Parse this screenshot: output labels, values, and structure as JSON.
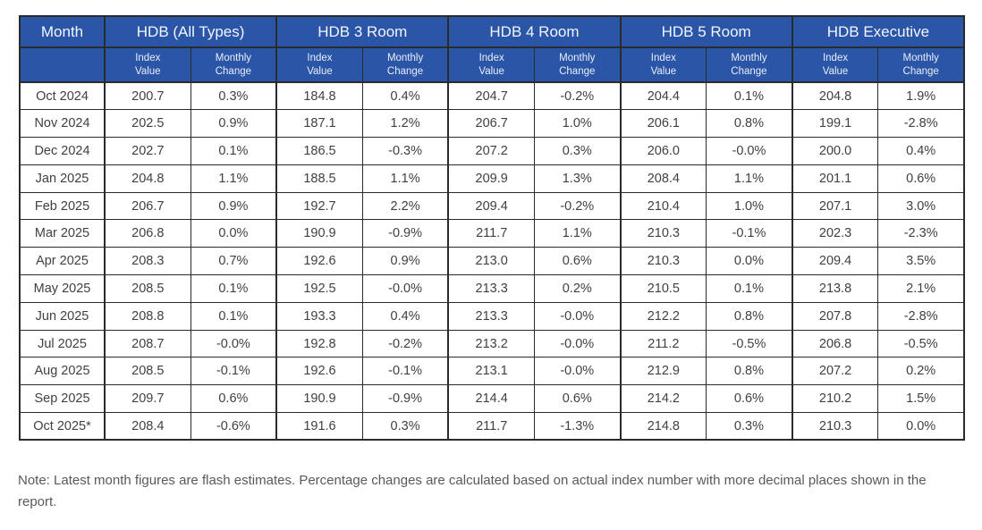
{
  "chart_data": {
    "type": "table",
    "column_groups": [
      "Month",
      "HDB (All Types)",
      "HDB 3 Room",
      "HDB 4 Room",
      "HDB 5 Room",
      "HDB Executive"
    ],
    "sub_columns": [
      "Index\nValue",
      "Monthly\nChange"
    ],
    "rows": [
      {
        "month": "Oct 2024",
        "values": [
          "200.7",
          "0.3%",
          "184.8",
          "0.4%",
          "204.7",
          "-0.2%",
          "204.4",
          "0.1%",
          "204.8",
          "1.9%"
        ]
      },
      {
        "month": "Nov 2024",
        "values": [
          "202.5",
          "0.9%",
          "187.1",
          "1.2%",
          "206.7",
          "1.0%",
          "206.1",
          "0.8%",
          "199.1",
          "-2.8%"
        ]
      },
      {
        "month": "Dec 2024",
        "values": [
          "202.7",
          "0.1%",
          "186.5",
          "-0.3%",
          "207.2",
          "0.3%",
          "206.0",
          "-0.0%",
          "200.0",
          "0.4%"
        ]
      },
      {
        "month": "Jan 2025",
        "values": [
          "204.8",
          "1.1%",
          "188.5",
          "1.1%",
          "209.9",
          "1.3%",
          "208.4",
          "1.1%",
          "201.1",
          "0.6%"
        ]
      },
      {
        "month": "Feb 2025",
        "values": [
          "206.7",
          "0.9%",
          "192.7",
          "2.2%",
          "209.4",
          "-0.2%",
          "210.4",
          "1.0%",
          "207.1",
          "3.0%"
        ]
      },
      {
        "month": "Mar 2025",
        "values": [
          "206.8",
          "0.0%",
          "190.9",
          "-0.9%",
          "211.7",
          "1.1%",
          "210.3",
          "-0.1%",
          "202.3",
          "-2.3%"
        ]
      },
      {
        "month": "Apr 2025",
        "values": [
          "208.3",
          "0.7%",
          "192.6",
          "0.9%",
          "213.0",
          "0.6%",
          "210.3",
          "0.0%",
          "209.4",
          "3.5%"
        ]
      },
      {
        "month": "May 2025",
        "values": [
          "208.5",
          "0.1%",
          "192.5",
          "-0.0%",
          "213.3",
          "0.2%",
          "210.5",
          "0.1%",
          "213.8",
          "2.1%"
        ]
      },
      {
        "month": "Jun 2025",
        "values": [
          "208.8",
          "0.1%",
          "193.3",
          "0.4%",
          "213.3",
          "-0.0%",
          "212.2",
          "0.8%",
          "207.8",
          "-2.8%"
        ]
      },
      {
        "month": "Jul 2025",
        "values": [
          "208.7",
          "-0.0%",
          "192.8",
          "-0.2%",
          "213.2",
          "-0.0%",
          "211.2",
          "-0.5%",
          "206.8",
          "-0.5%"
        ]
      },
      {
        "month": "Aug 2025",
        "values": [
          "208.5",
          "-0.1%",
          "192.6",
          "-0.1%",
          "213.1",
          "-0.0%",
          "212.9",
          "0.8%",
          "207.2",
          "0.2%"
        ]
      },
      {
        "month": "Sep 2025",
        "values": [
          "209.7",
          "0.6%",
          "190.9",
          "-0.9%",
          "214.4",
          "0.6%",
          "214.2",
          "0.6%",
          "210.2",
          "1.5%"
        ]
      },
      {
        "month": "Oct 2025*",
        "values": [
          "208.4",
          "-0.6%",
          "191.6",
          "0.3%",
          "211.7",
          "-1.3%",
          "214.8",
          "0.3%",
          "210.3",
          "0.0%"
        ]
      }
    ],
    "note": "Note: Latest month figures are flash estimates. Percentage changes are calculated based on actual index number with more decimal places shown in the report."
  },
  "colors": {
    "header_bg": "#2B55A7",
    "header_text": "#F2F6FC",
    "border": "#2B2B2B",
    "cell_text": "#414042",
    "note_text": "#58595B"
  }
}
